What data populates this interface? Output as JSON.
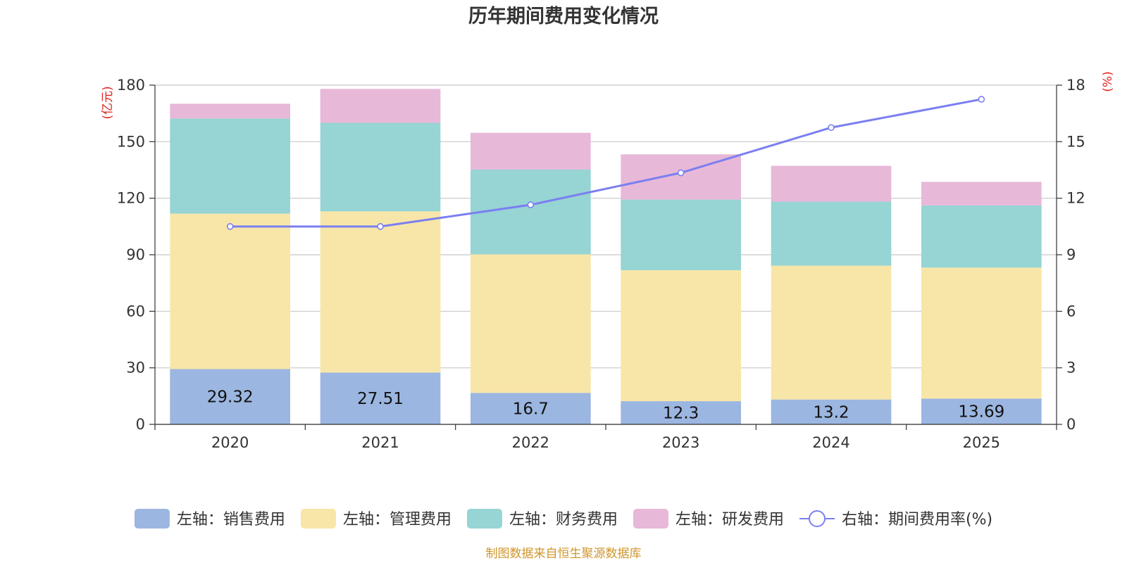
{
  "chart_data": {
    "type": "bar",
    "stacked": true,
    "title": "历年期间费用变化情况",
    "categories": [
      "2020",
      "2021",
      "2022",
      "2023",
      "2024",
      "2025"
    ],
    "series": [
      {
        "name": "左轴：销售费用",
        "axis": "left",
        "color": "#9bb6e0",
        "values": [
          29.32,
          27.51,
          16.7,
          12.3,
          13.2,
          13.69
        ]
      },
      {
        "name": "左轴：管理费用",
        "axis": "left",
        "color": "#f8e6a8",
        "values": [
          82.5,
          85.5,
          73.5,
          69.5,
          71.0,
          69.5
        ]
      },
      {
        "name": "左轴：财务费用",
        "axis": "left",
        "color": "#97d4d4",
        "values": [
          50.5,
          47.0,
          45.0,
          37.5,
          34.0,
          33.0
        ]
      },
      {
        "name": "左轴：研发费用",
        "axis": "left",
        "color": "#e8b8d8",
        "values": [
          7.8,
          18.0,
          19.5,
          24.0,
          19.0,
          12.5
        ]
      }
    ],
    "line": {
      "name": "右轴：期间费用率(%)",
      "axis": "right",
      "color": "#7b7ff0",
      "values": [
        10.5,
        10.5,
        11.65,
        13.35,
        15.75,
        17.25
      ]
    },
    "data_labels": [
      "29.32",
      "27.51",
      "16.7",
      "12.3",
      "13.2",
      "13.69"
    ],
    "left_axis": {
      "label": "(亿元)",
      "min": 0,
      "max": 180,
      "ticks": [
        0,
        30,
        60,
        90,
        120,
        150,
        180
      ]
    },
    "right_axis": {
      "label": "(%)",
      "min": 0,
      "max": 18,
      "ticks": [
        0,
        3,
        6,
        9,
        12,
        15,
        18
      ]
    },
    "grid": true,
    "legend_position": "bottom",
    "source": "制图数据来自恒生聚源数据库"
  }
}
